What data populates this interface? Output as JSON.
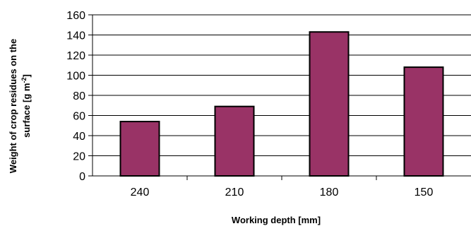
{
  "chart_data": {
    "type": "bar",
    "categories": [
      "240",
      "210",
      "180",
      "150"
    ],
    "values": [
      54,
      69,
      143,
      108
    ],
    "ylim": [
      0,
      160
    ],
    "ytick_step": 20,
    "xlabel": "Working depth [mm]",
    "ylabel": {
      "line1": "Weight of crop residues on the",
      "line2_prefix": "surface  [g m",
      "line2_sup": "-2",
      "line2_suffix": "]"
    },
    "grid": true,
    "colors": {
      "bar_fill": "#993366",
      "bar_stroke": "#000000",
      "grid": "#000000",
      "axis": "#000000"
    }
  }
}
